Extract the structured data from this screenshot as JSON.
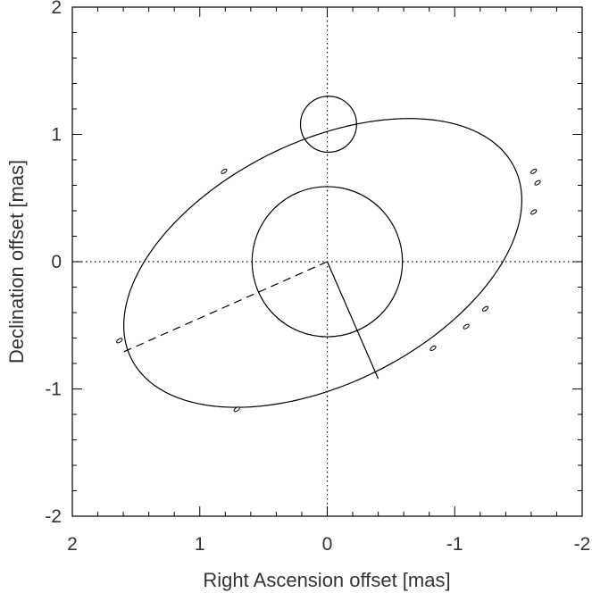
{
  "chart_data": {
    "type": "scatter",
    "xlabel": "Right Ascension offset [mas]",
    "ylabel": "Declination offset [mas]",
    "xlim": [
      2,
      -2
    ],
    "ylim": [
      -2,
      2
    ],
    "x_ticks": [
      "2",
      "1",
      "0",
      "-1",
      "-2"
    ],
    "y_ticks": [
      "2",
      "1",
      "0",
      "-1",
      "-2"
    ],
    "grid": false,
    "reference_lines": [
      {
        "name": "x=0",
        "style": "dotted"
      },
      {
        "name": "y=0",
        "style": "dotted"
      }
    ],
    "orbit": {
      "center": [
        0.035,
        -0.01
      ],
      "semi_major": 1.68,
      "semi_minor": 0.95,
      "angle_deg": 26.6
    },
    "primary_circle": {
      "center": [
        0.0,
        0.0
      ],
      "radius": 0.59
    },
    "companion_circle": {
      "center": [
        -0.01,
        1.08
      ],
      "radius": 0.22
    },
    "periastron_line": {
      "from": [
        0.0,
        0.0
      ],
      "to": [
        1.6,
        -0.71
      ],
      "style": "dashed"
    },
    "node_line": {
      "from": [
        0.0,
        0.0
      ],
      "to": [
        -0.4,
        -0.92
      ],
      "style": "solid"
    },
    "points": [
      {
        "x": 0.81,
        "y": 0.71
      },
      {
        "x": -1.62,
        "y": 0.71
      },
      {
        "x": -1.65,
        "y": 0.62
      },
      {
        "x": -1.62,
        "y": 0.39
      },
      {
        "x": -1.24,
        "y": -0.37
      },
      {
        "x": -1.09,
        "y": -0.51
      },
      {
        "x": -0.83,
        "y": -0.68
      },
      {
        "x": 0.71,
        "y": -1.16
      },
      {
        "x": 1.63,
        "y": -0.62
      }
    ]
  }
}
